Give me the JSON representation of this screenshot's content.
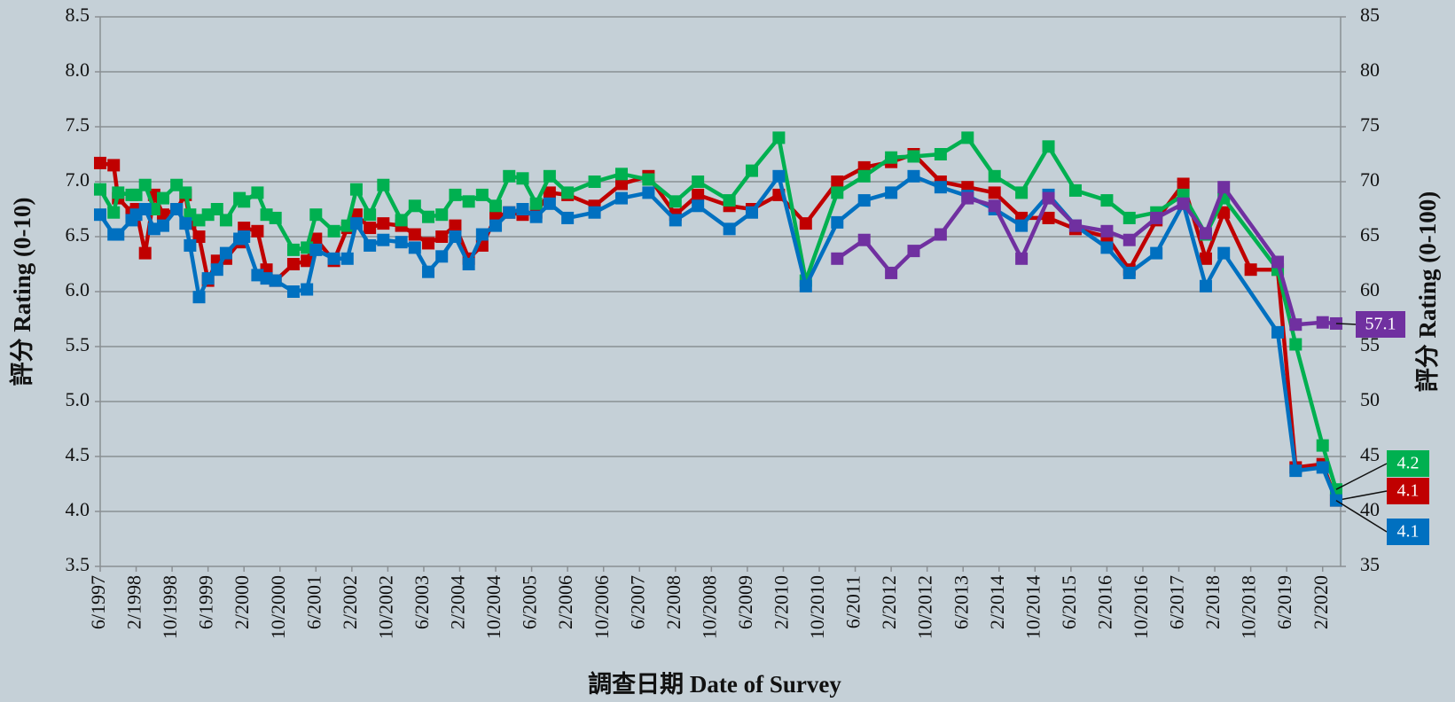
{
  "chart_data": {
    "type": "line",
    "ylabel": "評分 Rating (0-10)",
    "y2label": "評分 Rating (0-100)",
    "xlabel": "調查日期 Date of Survey",
    "xlim": [
      "6/1997",
      "6/2020"
    ],
    "xticks": [
      "6/1997",
      "2/1998",
      "10/1998",
      "6/1999",
      "2/2000",
      "10/2000",
      "6/2001",
      "2/2002",
      "10/2002",
      "6/2003",
      "2/2004",
      "10/2004",
      "6/2005",
      "2/2006",
      "10/2006",
      "6/2007",
      "2/2008",
      "10/2008",
      "6/2009",
      "2/2010",
      "10/2010",
      "6/2011",
      "2/2012",
      "10/2012",
      "6/2013",
      "2/2014",
      "10/2014",
      "6/2015",
      "2/2016",
      "10/2016",
      "6/2017",
      "2/2018",
      "10/2018",
      "6/2019",
      "2/2020"
    ],
    "ylim": [
      3.5,
      8.5
    ],
    "yticks": [
      3.5,
      {
        "value": 4,
        "label": "4.0"
      },
      4.5,
      {
        "value": 5,
        "label": "5.0"
      },
      5.5,
      {
        "value": 6,
        "label": "6.0"
      },
      6.5,
      {
        "value": 7,
        "label": "7.0"
      },
      7.5,
      {
        "value": 8,
        "label": "8.0"
      },
      8.5
    ],
    "y2lim": [
      35,
      85
    ],
    "y2ticks": [
      35,
      40,
      45,
      50,
      55,
      60,
      65,
      70,
      75,
      80,
      85
    ],
    "grid": true,
    "series": [
      {
        "color": "#c00000",
        "x": [
          "6/1997",
          "9/1997",
          "10/1997",
          "1/1998",
          "2/1998",
          "4/1998",
          "6/1998",
          "8/1998",
          "11/1998",
          "1/1999",
          "2/1999",
          "4/1999",
          "6/1999",
          "8/1999",
          "10/1999",
          "1/2000",
          "2/2000",
          "5/2000",
          "7/2000",
          "9/2000",
          "1/2001",
          "4/2001",
          "6/2001",
          "10/2001",
          "1/2002",
          "3/2002",
          "6/2002",
          "9/2002",
          "1/2003",
          "4/2003",
          "7/2003",
          "10/2003",
          "1/2004",
          "4/2004",
          "7/2004",
          "10/2004",
          "1/2005",
          "4/2005",
          "7/2005",
          "10/2005",
          "2/2006",
          "8/2006",
          "2/2007",
          "8/2007",
          "2/2008",
          "7/2008",
          "2/2009",
          "7/2009",
          "1/2010",
          "7/2010",
          "2/2011",
          "8/2011",
          "2/2012",
          "7/2012",
          "1/2013",
          "7/2013",
          "1/2014",
          "7/2014",
          "1/2015",
          "7/2015",
          "2/2016",
          "7/2016",
          "1/2017",
          "7/2017",
          "12/2017",
          "4/2018",
          "10/2018",
          "4/2019",
          "8/2019",
          "2/2020",
          "5/2020"
        ],
        "values": [
          7.17,
          7.15,
          6.85,
          6.72,
          6.75,
          6.35,
          6.88,
          6.7,
          6.75,
          6.88,
          6.62,
          6.5,
          6.1,
          6.28,
          6.3,
          6.45,
          6.58,
          6.55,
          6.2,
          6.1,
          6.25,
          6.28,
          6.48,
          6.28,
          6.58,
          6.7,
          6.58,
          6.62,
          6.6,
          6.52,
          6.44,
          6.5,
          6.6,
          6.3,
          6.42,
          6.68,
          6.72,
          6.7,
          6.72,
          6.9,
          6.88,
          6.78,
          6.98,
          7.05,
          6.7,
          6.88,
          6.78,
          6.75,
          6.88,
          6.62,
          7.0,
          7.13,
          7.18,
          7.25,
          7.0,
          6.95,
          6.9,
          6.67,
          6.67,
          6.57,
          6.5,
          6.2,
          6.65,
          6.98,
          6.3,
          6.72,
          6.2,
          6.2,
          4.4,
          4.43,
          4.1
        ]
      },
      {
        "color": "#00b050",
        "x": [
          "6/1997",
          "9/1997",
          "10/1997",
          "1/1998",
          "2/1998",
          "4/1998",
          "6/1998",
          "8/1998",
          "11/1998",
          "1/1999",
          "2/1999",
          "4/1999",
          "6/1999",
          "8/1999",
          "10/1999",
          "1/2000",
          "2/2000",
          "5/2000",
          "7/2000",
          "9/2000",
          "1/2001",
          "4/2001",
          "6/2001",
          "10/2001",
          "1/2002",
          "3/2002",
          "6/2002",
          "9/2002",
          "1/2003",
          "4/2003",
          "7/2003",
          "10/2003",
          "1/2004",
          "4/2004",
          "7/2004",
          "10/2004",
          "1/2005",
          "4/2005",
          "7/2005",
          "10/2005",
          "2/2006",
          "8/2006",
          "2/2007",
          "8/2007",
          "2/2008",
          "7/2008",
          "2/2009",
          "7/2009",
          "1/2010",
          "7/2010",
          "2/2011",
          "8/2011",
          "2/2012",
          "7/2012",
          "1/2013",
          "7/2013",
          "1/2014",
          "7/2014",
          "1/2015",
          "7/2015",
          "2/2016",
          "7/2016",
          "1/2017",
          "7/2017",
          "12/2017",
          "4/2018",
          "4/2019",
          "8/2019",
          "2/2020",
          "5/2020"
        ],
        "values": [
          6.93,
          6.72,
          6.9,
          6.88,
          6.88,
          6.97,
          6.75,
          6.85,
          6.97,
          6.9,
          6.7,
          6.65,
          6.7,
          6.75,
          6.65,
          6.85,
          6.82,
          6.9,
          6.7,
          6.67,
          6.38,
          6.4,
          6.7,
          6.55,
          6.6,
          6.93,
          6.7,
          6.97,
          6.65,
          6.78,
          6.68,
          6.7,
          6.88,
          6.82,
          6.88,
          6.78,
          7.05,
          7.03,
          6.8,
          7.05,
          6.9,
          7.0,
          7.07,
          7.02,
          6.82,
          7.0,
          6.83,
          7.1,
          7.4,
          6.1,
          6.9,
          7.05,
          7.22,
          7.23,
          7.25,
          7.4,
          7.05,
          6.9,
          7.32,
          6.92,
          6.83,
          6.67,
          6.72,
          6.88,
          6.52,
          6.85,
          6.2,
          5.52,
          4.6,
          4.2
        ]
      },
      {
        "color": "#0070c0",
        "x": [
          "6/1997",
          "9/1997",
          "10/1997",
          "1/1998",
          "2/1998",
          "4/1998",
          "6/1998",
          "8/1998",
          "11/1998",
          "1/1999",
          "2/1999",
          "4/1999",
          "6/1999",
          "8/1999",
          "10/1999",
          "1/2000",
          "2/2000",
          "5/2000",
          "7/2000",
          "9/2000",
          "1/2001",
          "4/2001",
          "6/2001",
          "10/2001",
          "1/2002",
          "3/2002",
          "6/2002",
          "9/2002",
          "1/2003",
          "4/2003",
          "7/2003",
          "10/2003",
          "1/2004",
          "4/2004",
          "7/2004",
          "10/2004",
          "1/2005",
          "4/2005",
          "7/2005",
          "10/2005",
          "2/2006",
          "8/2006",
          "2/2007",
          "8/2007",
          "2/2008",
          "7/2008",
          "2/2009",
          "7/2009",
          "1/2010",
          "7/2010",
          "2/2011",
          "8/2011",
          "2/2012",
          "7/2012",
          "1/2013",
          "7/2013",
          "1/2014",
          "7/2014",
          "1/2015",
          "7/2015",
          "2/2016",
          "7/2016",
          "1/2017",
          "7/2017",
          "12/2017",
          "4/2018",
          "4/2019",
          "8/2019",
          "2/2020",
          "5/2020"
        ],
        "values": [
          6.7,
          6.52,
          6.52,
          6.65,
          6.7,
          6.75,
          6.57,
          6.6,
          6.75,
          6.62,
          6.42,
          5.95,
          6.12,
          6.2,
          6.35,
          6.48,
          6.5,
          6.15,
          6.12,
          6.1,
          6.0,
          6.02,
          6.38,
          6.3,
          6.3,
          6.62,
          6.42,
          6.47,
          6.45,
          6.4,
          6.18,
          6.32,
          6.5,
          6.25,
          6.52,
          6.6,
          6.72,
          6.75,
          6.68,
          6.8,
          6.67,
          6.72,
          6.85,
          6.9,
          6.65,
          6.78,
          6.57,
          6.72,
          7.05,
          6.05,
          6.63,
          6.83,
          6.9,
          7.05,
          6.95,
          6.87,
          6.75,
          6.6,
          6.88,
          6.6,
          6.4,
          6.17,
          6.35,
          6.8,
          6.05,
          6.35,
          5.63,
          4.37,
          4.4,
          4.1
        ]
      },
      {
        "color": "#7030a0",
        "axis": "y2",
        "x": [
          "2/2011",
          "8/2011",
          "2/2012",
          "7/2012",
          "1/2013",
          "7/2013",
          "1/2014",
          "7/2014",
          "1/2015",
          "7/2015",
          "2/2016",
          "7/2016",
          "1/2017",
          "7/2017",
          "12/2017",
          "4/2018",
          "4/2019",
          "8/2019",
          "2/2020",
          "5/2020"
        ],
        "values": [
          63,
          64.7,
          61.7,
          63.7,
          65.2,
          68.5,
          67.8,
          63,
          68.5,
          66,
          65.5,
          64.7,
          66.7,
          68,
          65.3,
          69.5,
          62.7,
          57,
          57.2,
          57.1
        ]
      }
    ]
  }
}
